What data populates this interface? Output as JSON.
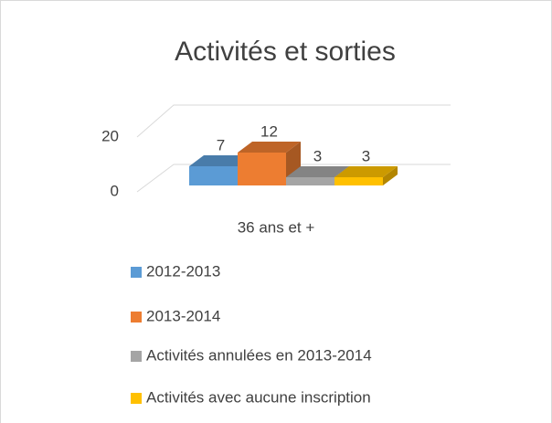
{
  "chart_data": {
    "type": "bar3d",
    "title": "Activités et sorties",
    "categories": [
      "36 ans et +"
    ],
    "series": [
      {
        "name": "2012-2013",
        "color": "#5b9bd5",
        "values": [
          7
        ]
      },
      {
        "name": "2013-2014",
        "color": "#ed7d31",
        "values": [
          12
        ]
      },
      {
        "name": "Activités annulées en 2013-2014",
        "color": "#a5a5a5",
        "values": [
          3
        ]
      },
      {
        "name": "Activités avec aucune inscription",
        "color": "#ffc000",
        "values": [
          3
        ]
      }
    ],
    "ylim": [
      0,
      20
    ],
    "yticks": [
      0,
      20
    ],
    "grid": true,
    "legend": "bottom"
  }
}
